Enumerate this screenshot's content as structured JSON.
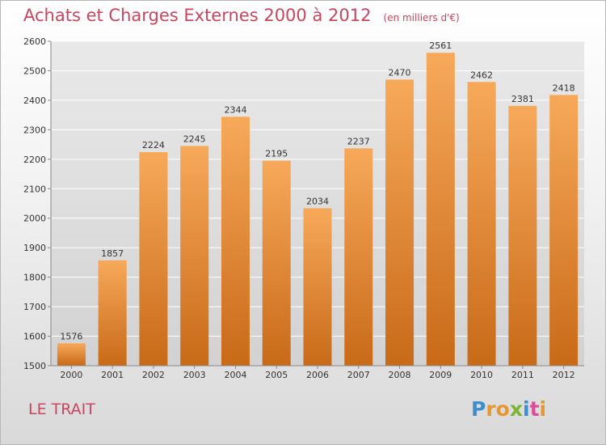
{
  "header": {
    "title": "Achats et Charges Externes 2000 à 2012",
    "unit": "(en milliers d'€)"
  },
  "footer": {
    "commune": "LE TRAIT",
    "logo": [
      "P",
      "r",
      "o",
      "x",
      "i",
      "t",
      "i"
    ],
    "logo_colors": [
      "#3a8fd0",
      "#e8962e",
      "#e8962e",
      "#7ab536",
      "#3a8fd0",
      "#d84f9a",
      "#e8962e"
    ]
  },
  "colors": {
    "bar_top": "#f7a95a",
    "bar_bottom": "#c86a18",
    "grid": "#ffffff",
    "title": "#c8465e"
  },
  "chart_data": {
    "type": "bar",
    "title": "Achats et Charges Externes 2000 à 2012",
    "xlabel": "",
    "ylabel": "",
    "categories": [
      "2000",
      "2001",
      "2002",
      "2003",
      "2004",
      "2005",
      "2006",
      "2007",
      "2008",
      "2009",
      "2010",
      "2011",
      "2012"
    ],
    "values": [
      1576,
      1857,
      2224,
      2245,
      2344,
      2195,
      2034,
      2237,
      2470,
      2561,
      2462,
      2381,
      2418
    ],
    "ylim": [
      1500,
      2600
    ],
    "yticks": [
      1500,
      1600,
      1700,
      1800,
      1900,
      2000,
      2100,
      2200,
      2300,
      2400,
      2500,
      2600
    ],
    "grid": true,
    "data_labels": true
  }
}
